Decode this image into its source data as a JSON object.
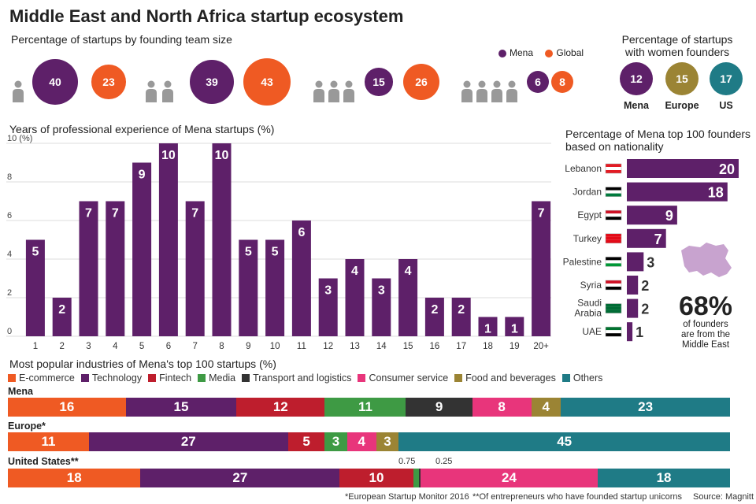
{
  "title": "Middle East and North Africa startup ecosystem",
  "team_size": {
    "heading": "Percentage of startups by founding team size",
    "legend": {
      "mena": "Mena",
      "global": "Global"
    },
    "groups": [
      {
        "people": 1,
        "mena": 40,
        "global": 23
      },
      {
        "people": 2,
        "mena": 39,
        "global": 43
      },
      {
        "people": 3,
        "mena": 15,
        "global": 26
      },
      {
        "people": 4,
        "mena": 6,
        "global": 8
      }
    ]
  },
  "women_founders": {
    "heading_line1": "Percentage of startups",
    "heading_line2": "with women founders",
    "items": [
      {
        "value": "12",
        "label": "Mena",
        "color": "#5e2069"
      },
      {
        "value": "15",
        "label": "Europe",
        "color": "#9b8434"
      },
      {
        "value": "17",
        "label": "US",
        "color": "#1f7b86"
      }
    ]
  },
  "experience": {
    "heading": "Years of professional experience of Mena startups",
    "heading_unit": "(%)",
    "ytop_label": "10 (%)"
  },
  "nationality": {
    "heading_line1": "Percentage of Mena top 100 founders",
    "heading_line2": "based on nationality",
    "rows": [
      {
        "country": "Lebanon",
        "value": 20
      },
      {
        "country": "Jordan",
        "value": 18
      },
      {
        "country": "Egypt",
        "value": 9
      },
      {
        "country": "Turkey",
        "value": 7
      },
      {
        "country": "Palestine",
        "value": 3
      },
      {
        "country": "Syria",
        "value": 2
      },
      {
        "country": "Saudi Arabia",
        "value": 2
      },
      {
        "country": "UAE",
        "value": 1
      }
    ],
    "big_stat": "68%",
    "stat_line1": "of founders",
    "stat_line2": "are from the",
    "stat_line3": "Middle East"
  },
  "industries": {
    "heading": "Most popular industries of Mena's top 100 startups",
    "heading_unit": "(%)",
    "legend": [
      {
        "name": "E-commerce",
        "color": "#ef5a23"
      },
      {
        "name": "Technology",
        "color": "#5e2069"
      },
      {
        "name": "Fintech",
        "color": "#be1e2d"
      },
      {
        "name": "Media",
        "color": "#3e9a44"
      },
      {
        "name": "Transport and logistics",
        "color": "#333333"
      },
      {
        "name": "Consumer service",
        "color": "#e8357b"
      },
      {
        "name": "Food and beverages",
        "color": "#9b8434"
      },
      {
        "name": "Others",
        "color": "#1f7b86"
      }
    ],
    "rows": [
      {
        "label": "Mena",
        "values": [
          16,
          15,
          12,
          11,
          9,
          8,
          4,
          23
        ]
      },
      {
        "label": "Europe*",
        "values": [
          11,
          27,
          5,
          3,
          0,
          4,
          3,
          45
        ]
      },
      {
        "label": "United States**",
        "values": [
          18,
          27,
          10,
          0.75,
          0.25,
          24,
          0,
          18
        ]
      }
    ],
    "small_label_a": "0.75",
    "small_label_b": "0.25"
  },
  "footer": {
    "note1": "*European Startup Monitor 2016",
    "note2": "**Of entrepreneurs who have founded startup unicorns",
    "source": "Source: Magnitt"
  },
  "colors": {
    "mena": "#5e2069",
    "global": "#ef5a23",
    "person": "#999999",
    "bar": "#5e2069"
  },
  "chart_data": [
    {
      "type": "bar",
      "title": "Years of professional experience of Mena startups (%)",
      "categories": [
        "1",
        "2",
        "3",
        "4",
        "5",
        "6",
        "7",
        "8",
        "9",
        "10",
        "11",
        "12",
        "13",
        "14",
        "15",
        "16",
        "17",
        "18",
        "19",
        "20+"
      ],
      "values": [
        5,
        2,
        7,
        7,
        9,
        10,
        7,
        10,
        5,
        5,
        6,
        3,
        4,
        3,
        4,
        2,
        2,
        1,
        1,
        7
      ],
      "yticks": [
        0,
        2,
        4,
        6,
        8,
        10
      ],
      "ylim": [
        0,
        10
      ]
    },
    {
      "type": "bar",
      "title": "Percentage of Mena top 100 founders based on nationality",
      "categories": [
        "Lebanon",
        "Jordan",
        "Egypt",
        "Turkey",
        "Palestine",
        "Syria",
        "Saudi Arabia",
        "UAE"
      ],
      "values": [
        20,
        18,
        9,
        7,
        3,
        2,
        2,
        1
      ],
      "orientation": "horizontal"
    }
  ]
}
